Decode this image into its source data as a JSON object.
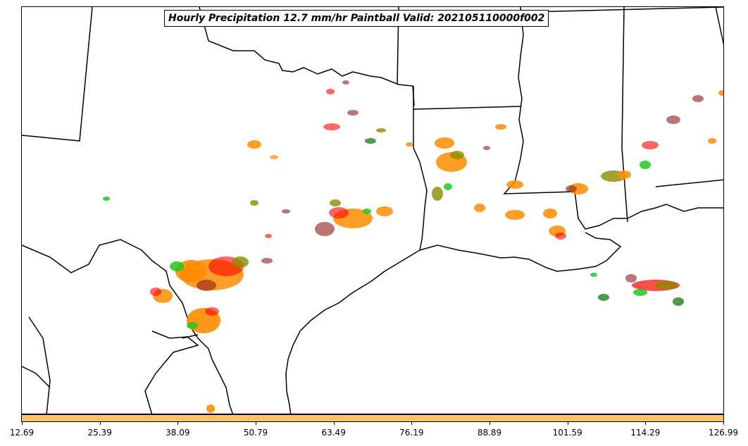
{
  "title": "Hourly Precipitation 12.7 mm/hr Paintball Valid: 202105110000f002",
  "colorbar": {
    "color": "#ffc266",
    "tick_labels": [
      "12.69",
      "25.39",
      "38.09",
      "50.79",
      "63.49",
      "76.19",
      "88.89",
      "101.59",
      "114.29",
      "126.99"
    ]
  },
  "paint_colors": [
    "#ff0000",
    "#ff8c00",
    "#1ec81e",
    "#8b8b00",
    "#8b1a1a",
    "#2e8b2e",
    "#ffa020",
    "#b22222"
  ]
}
